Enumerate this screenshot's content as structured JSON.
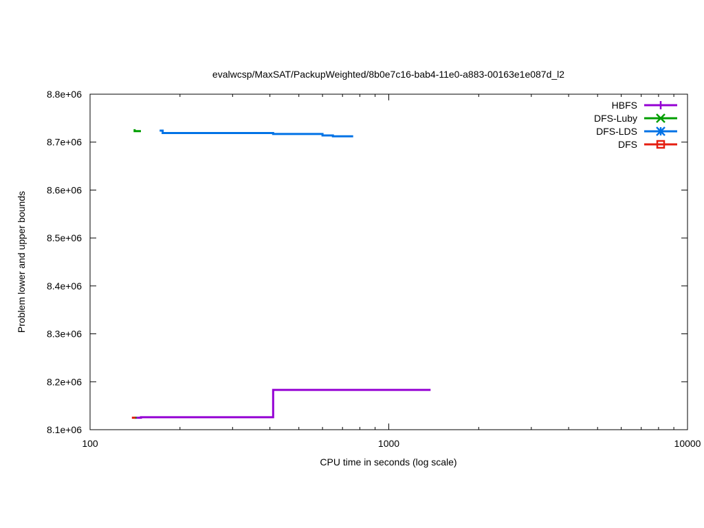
{
  "chart_data": {
    "type": "line",
    "title": "evalwcsp/MaxSAT/PackupWeighted/8b0e7c16-bab4-11e0-a883-00163e1e087d_l2",
    "xlabel": "CPU time in seconds (log scale)",
    "ylabel": "Problem lower and upper bounds",
    "xscale": "log",
    "xlim": [
      100,
      10000
    ],
    "ylim": [
      8100000,
      8800000
    ],
    "xticks": [
      {
        "value": 100,
        "label": "100"
      },
      {
        "value": 1000,
        "label": "1000"
      },
      {
        "value": 10000,
        "label": "10000"
      }
    ],
    "yticks": [
      {
        "value": 8100000,
        "label": "8.1e+06"
      },
      {
        "value": 8200000,
        "label": "8.2e+06"
      },
      {
        "value": 8300000,
        "label": "8.3e+06"
      },
      {
        "value": 8400000,
        "label": "8.4e+06"
      },
      {
        "value": 8500000,
        "label": "8.5e+06"
      },
      {
        "value": 8600000,
        "label": "8.6e+06"
      },
      {
        "value": 8700000,
        "label": "8.7e+06"
      },
      {
        "value": 8800000,
        "label": "8.8e+06"
      }
    ],
    "grid": false,
    "legend_position": "top-right",
    "series": [
      {
        "name": "HBFS",
        "color": "#9400d3",
        "marker": "plus",
        "segments": [
          [
            [
              142,
              8125000
            ],
            [
              148,
              8125000
            ],
            [
              148,
              8126000
            ],
            [
              410,
              8126000
            ],
            [
              410,
              8183000
            ],
            [
              1380,
              8183000
            ]
          ]
        ]
      },
      {
        "name": "DFS-Luby",
        "color": "#009e00",
        "marker": "x",
        "segments": [
          [
            [
              141,
              8727000
            ],
            [
              141,
              8723000
            ],
            [
              148,
              8723000
            ]
          ],
          [
            [
              140,
              8125000
            ],
            [
              143,
              8125000
            ]
          ]
        ]
      },
      {
        "name": "DFS-LDS",
        "color": "#0072e6",
        "marker": "star",
        "segments": [
          [
            [
              171,
              8724000
            ],
            [
              175,
              8724000
            ],
            [
              175,
              8719000
            ],
            [
              410,
              8719000
            ],
            [
              410,
              8717000
            ],
            [
              600,
              8717000
            ],
            [
              600,
              8714000
            ],
            [
              650,
              8714000
            ],
            [
              650,
              8712000
            ],
            [
              760,
              8712000
            ]
          ]
        ]
      },
      {
        "name": "DFS",
        "color": "#e51e10",
        "marker": "square",
        "segments": [
          [
            [
              138,
              8125000
            ],
            [
              142,
              8125000
            ]
          ]
        ]
      }
    ]
  }
}
